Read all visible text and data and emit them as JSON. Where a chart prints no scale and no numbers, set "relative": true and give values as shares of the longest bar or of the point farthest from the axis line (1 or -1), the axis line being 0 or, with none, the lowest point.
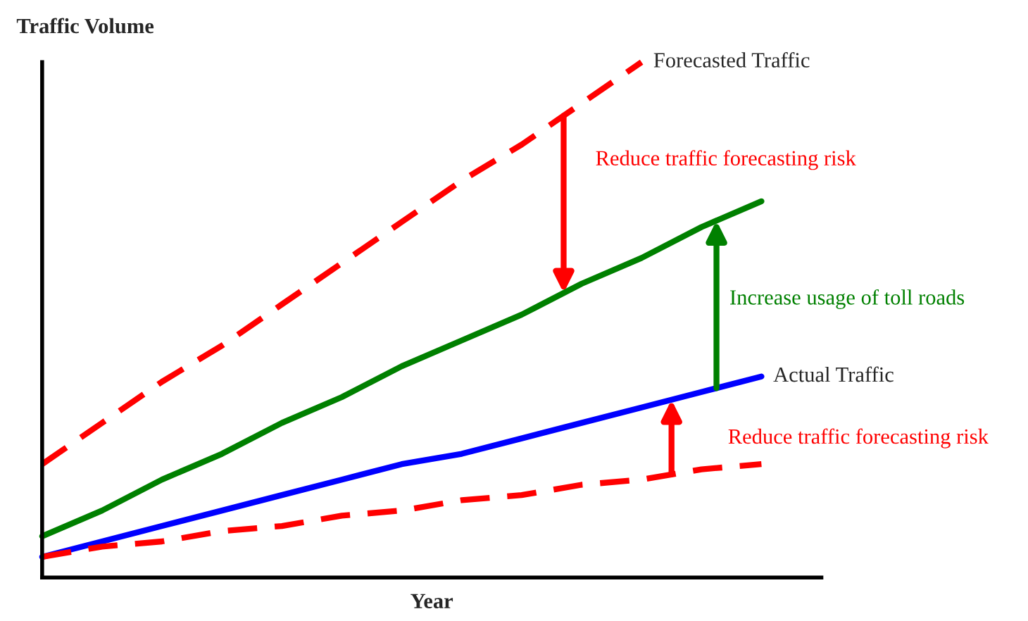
{
  "chart_data": {
    "type": "line",
    "relative": true,
    "title": "Traffic Volume",
    "xlabel": "Year",
    "tick_labels": false,
    "categories": [
      null,
      null,
      null,
      null,
      null,
      null,
      null,
      null,
      null,
      null,
      null,
      null,
      null
    ],
    "series": [
      {
        "name": "Forecasted Traffic",
        "color": "#ff0000",
        "line_style": "dashed",
        "values": [
          0.22,
          0.3,
          0.38,
          0.45,
          0.53,
          0.61,
          0.69,
          0.77,
          0.84,
          0.92,
          1.0,
          null,
          null
        ]
      },
      {
        "color": "#008000",
        "line_style": "solid",
        "values": [
          0.08,
          0.13,
          0.19,
          0.24,
          0.3,
          0.35,
          0.41,
          0.46,
          0.51,
          0.57,
          0.62,
          0.68,
          0.73
        ]
      },
      {
        "name": "Actual Traffic",
        "color": "#0000ff",
        "line_style": "solid",
        "values": [
          0.04,
          0.07,
          0.1,
          0.13,
          0.16,
          0.19,
          0.22,
          0.24,
          0.27,
          0.3,
          0.33,
          0.36,
          0.39
        ]
      },
      {
        "color": "#ff0000",
        "line_style": "dashed",
        "values": [
          0.04,
          0.06,
          0.07,
          0.09,
          0.1,
          0.12,
          0.13,
          0.15,
          0.16,
          0.18,
          0.19,
          0.21,
          0.22
        ]
      }
    ],
    "annotations": [
      "Reduce traffic forecasting risk",
      "Increase usage of toll roads",
      "Reduce traffic forecasting risk"
    ]
  }
}
